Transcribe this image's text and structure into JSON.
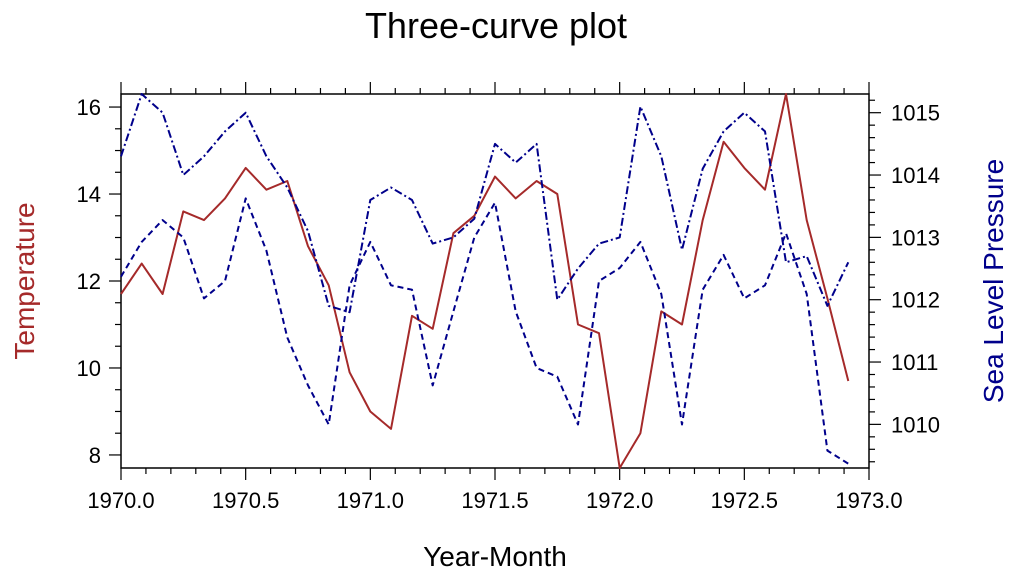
{
  "chart_data": {
    "type": "line",
    "title": "Three-curve plot",
    "xlabel": "Year-Month",
    "ylabel_left": "Temperature",
    "ylabel_right": "Sea Level Pressure",
    "xlim": [
      1970.0,
      1973.0
    ],
    "ylim_left": [
      7.7,
      16.3
    ],
    "ylim_right": [
      1009.3,
      1015.3
    ],
    "xticks": [
      1970.0,
      1970.5,
      1971.0,
      1971.5,
      1972.0,
      1972.5,
      1973.0
    ],
    "xtick_labels": [
      "1970.0",
      "1970.5",
      "1971.0",
      "1971.5",
      "1972.0",
      "1972.5",
      "1973.0"
    ],
    "yticks_left": [
      8,
      10,
      12,
      14,
      16
    ],
    "ytick_labels_left": [
      "8",
      "10",
      "12",
      "14",
      "16"
    ],
    "yticks_right": [
      1010,
      1011,
      1012,
      1013,
      1014,
      1015
    ],
    "ytick_labels_right": [
      "1010",
      "1011",
      "1012",
      "1013",
      "1014",
      "1015"
    ],
    "grid": false,
    "colors": {
      "temperature": "#a52a2a",
      "pressure": "#00008b",
      "left_label": "#a52a2a",
      "right_label": "#00008b"
    },
    "x": [
      1970.0,
      1970.083,
      1970.167,
      1970.25,
      1970.333,
      1970.417,
      1970.5,
      1970.583,
      1970.667,
      1970.75,
      1970.833,
      1970.917,
      1971.0,
      1971.083,
      1971.167,
      1971.25,
      1971.333,
      1971.417,
      1971.5,
      1971.583,
      1971.667,
      1971.75,
      1971.833,
      1971.917,
      1972.0,
      1972.083,
      1972.167,
      1972.25,
      1972.333,
      1972.417,
      1972.5,
      1972.583,
      1972.667,
      1972.75,
      1972.833,
      1972.917
    ],
    "series": [
      {
        "axis": "left",
        "style": "solid",
        "color": "#a52a2a",
        "values": [
          11.7,
          12.4,
          11.7,
          13.6,
          13.4,
          13.9,
          14.6,
          14.1,
          14.3,
          12.8,
          11.9,
          9.9,
          9.0,
          8.6,
          11.2,
          10.9,
          13.1,
          13.5,
          14.4,
          13.9,
          14.3,
          14.0,
          11.0,
          10.8,
          7.7,
          8.5,
          11.3,
          11.0,
          13.4,
          15.2,
          14.6,
          14.1,
          16.3,
          13.4,
          11.6,
          9.7
        ]
      },
      {
        "axis": "right",
        "style": "dashdot",
        "color": "#00008b",
        "values": [
          1014.3,
          1015.3,
          1015.0,
          1014.0,
          1014.3,
          1014.7,
          1015.0,
          1014.3,
          1013.8,
          1013.1,
          1011.9,
          1011.8,
          1013.6,
          1013.8,
          1013.6,
          1012.9,
          1013.0,
          1013.3,
          1014.5,
          1014.2,
          1014.5,
          1012.0,
          1012.5,
          1012.9,
          1013.0,
          1015.1,
          1014.3,
          1012.8,
          1014.1,
          1014.7,
          1015.0,
          1014.7,
          1012.6,
          1012.7,
          1011.9,
          1012.6
        ]
      },
      {
        "axis": "left",
        "style": "dashed",
        "color": "#00008b",
        "values": [
          12.1,
          12.9,
          13.4,
          13.0,
          11.6,
          12.0,
          13.9,
          12.7,
          10.7,
          9.6,
          8.7,
          11.9,
          12.9,
          11.9,
          11.8,
          9.6,
          11.3,
          13.0,
          13.8,
          11.3,
          10.0,
          9.8,
          8.7,
          12.0,
          12.3,
          12.9,
          11.7,
          8.7,
          11.8,
          12.6,
          11.6,
          11.9,
          13.1,
          11.7,
          8.1,
          7.8
        ]
      }
    ]
  }
}
